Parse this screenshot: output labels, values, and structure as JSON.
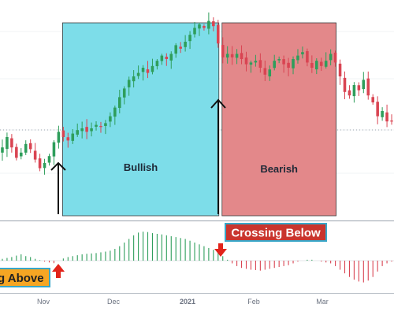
{
  "chart_data": [
    {
      "type": "candlestick",
      "x_tick_labels": [
        "Nov",
        "Dec",
        "2021",
        "Feb",
        "Mar"
      ],
      "grid": true,
      "reference_line": "dotted horizontal",
      "colors": {
        "up": "#2e9e5b",
        "down": "#d94452"
      },
      "zones": [
        {
          "label": "Bullish",
          "color": "#7ddde9",
          "start_bar": 13,
          "end_bar": 46
        },
        {
          "label": "Bearish",
          "color": "#e3888a",
          "start_bar": 47,
          "end_bar": 71
        }
      ],
      "closes": [
        34,
        40,
        34,
        28,
        31,
        36,
        33,
        27,
        22,
        25,
        29,
        37,
        43,
        40,
        38,
        42,
        44,
        45,
        43,
        45,
        47,
        46,
        48,
        52,
        57,
        63,
        68,
        73,
        75,
        77,
        80,
        77,
        81,
        84,
        87,
        85,
        88,
        93,
        91,
        95,
        99,
        103,
        105,
        103,
        107,
        104,
        94,
        86,
        88,
        86,
        88,
        85,
        82,
        83,
        84,
        80,
        76,
        79,
        84,
        85,
        82,
        80,
        85,
        87,
        89,
        83,
        80,
        84,
        81,
        84,
        88,
        83,
        75,
        66,
        64,
        70,
        67,
        73,
        64,
        60,
        52,
        55,
        49,
        49
      ]
    },
    {
      "type": "histogram",
      "colors": {
        "positive": "#2e9e5b",
        "negative": "#d94452"
      },
      "values": [
        1.0,
        1.5,
        2.0,
        2.8,
        3.5,
        2.5,
        2.0,
        1.0,
        0.3,
        -0.5,
        -1.0,
        -1.4,
        0.0,
        1.2,
        2.0,
        2.5,
        3.0,
        3.5,
        3.8,
        4.0,
        4.2,
        4.6,
        5.0,
        5.5,
        6.5,
        8.0,
        10.0,
        12.0,
        14.0,
        15.5,
        16.0,
        15.8,
        15.2,
        14.8,
        14.5,
        14.0,
        13.5,
        13.0,
        12.5,
        12.0,
        11.0,
        10.0,
        9.0,
        8.0,
        7.0,
        6.0,
        4.5,
        2.5,
        0.5,
        -1.5,
        -3.0,
        -4.0,
        -4.5,
        -5.0,
        -5.2,
        -5.5,
        -5.0,
        -4.5,
        -4.0,
        -3.5,
        -3.0,
        -2.5,
        -1.5,
        -0.5,
        0.0,
        0.5,
        0.5,
        0.0,
        -0.5,
        -1.0,
        -1.5,
        -3.0,
        -5.0,
        -7.0,
        -9.0,
        -10.5,
        -11.5,
        -12.0,
        -11.0,
        -9.0,
        -6.0,
        -3.0,
        -1.5,
        -0.5
      ]
    }
  ],
  "annotations": {
    "bullish_label": "Bullish",
    "bearish_label": "Bearish",
    "crossing_below": "Crossing Below",
    "crossing_above": "g Above"
  },
  "colors": {
    "crossing_below_bg": "#c9352e",
    "crossing_below_border": "#37a7c9",
    "crossing_below_text": "#ffffff",
    "crossing_above_bg": "#f6a623",
    "crossing_above_border": "#37a7c9",
    "crossing_above_text": "#222222",
    "signal_arrow": "#e2231a",
    "entry_arrow": "#111111"
  }
}
